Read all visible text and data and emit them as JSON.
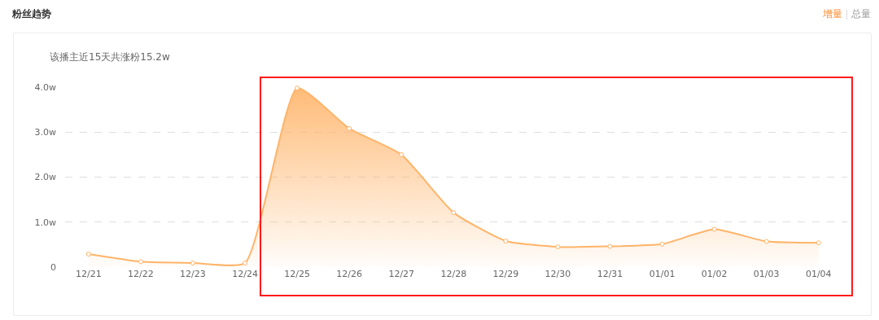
{
  "chart_data": {
    "type": "area",
    "title": "粉丝趋势",
    "subtitle": "该播主近15天共涨粉15.2w",
    "annotations": [
      "增量",
      "总量"
    ],
    "categories": [
      "12/21",
      "12/22",
      "12/23",
      "12/24",
      "12/25",
      "12/26",
      "12/27",
      "12/28",
      "12/29",
      "12/30",
      "12/31",
      "01/01",
      "01/02",
      "01/03",
      "01/04"
    ],
    "series": [
      {
        "color": "#ffb469",
        "values": [
          0.29,
          0.12,
          0.09,
          0.09,
          3.98,
          3.08,
          2.5,
          1.21,
          0.58,
          0.45,
          0.46,
          0.51,
          0.84,
          0.57,
          0.54
        ]
      }
    ],
    "ylim": [
      0,
      4.0
    ],
    "yticks": [
      0,
      {
        "value": 1,
        "label": "1.0w"
      },
      {
        "value": 2,
        "label": "2.0w"
      },
      {
        "value": 3,
        "label": "3.0w"
      },
      {
        "value": 4,
        "label": "4.0w"
      }
    ],
    "grid": "y",
    "marker": "circle",
    "line_style": "solid"
  }
}
